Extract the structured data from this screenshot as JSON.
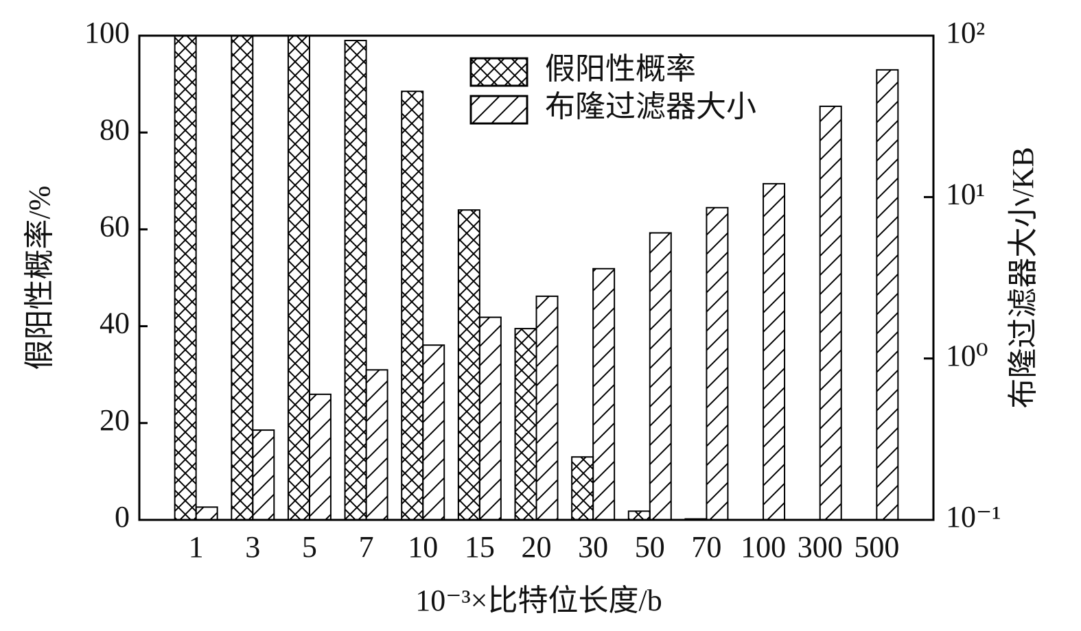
{
  "chart_data": {
    "type": "bar",
    "xlabel": "10⁻³×比特位长度/b",
    "ylabel": "假阳性概率/%",
    "y2label": "布隆过滤器大小/KB",
    "categories": [
      "1",
      "3",
      "5",
      "7",
      "10",
      "15",
      "20",
      "30",
      "50",
      "70",
      "100",
      "300",
      "500"
    ],
    "series": [
      {
        "name": "假阳性概率",
        "color": "#000000",
        "hatch": "x",
        "values": [
          100,
          100,
          100,
          99,
          88.5,
          64,
          39.5,
          13,
          1.8,
          0.2,
          0,
          0,
          0
        ]
      },
      {
        "name": "布隆过滤器大小",
        "color": "#000000",
        "hatch": "/",
        "axis": "y2",
        "values": [
          0.12,
          0.36,
          0.6,
          0.85,
          1.21,
          1.8,
          2.43,
          3.6,
          6.0,
          8.6,
          12.1,
          36.5,
          61.4
        ]
      }
    ],
    "ylim": [
      0,
      100
    ],
    "yticks": [
      0,
      20,
      40,
      60,
      80,
      100
    ],
    "y2lim": [
      0.1,
      100
    ],
    "y2log": true,
    "y2ticks": [
      {
        "value": 0.1,
        "label": "10⁻¹"
      },
      {
        "value": 1,
        "label": "10⁰"
      },
      {
        "value": 10,
        "label": "10¹"
      },
      {
        "value": 100,
        "label": "10²"
      }
    ],
    "legend": "top"
  }
}
